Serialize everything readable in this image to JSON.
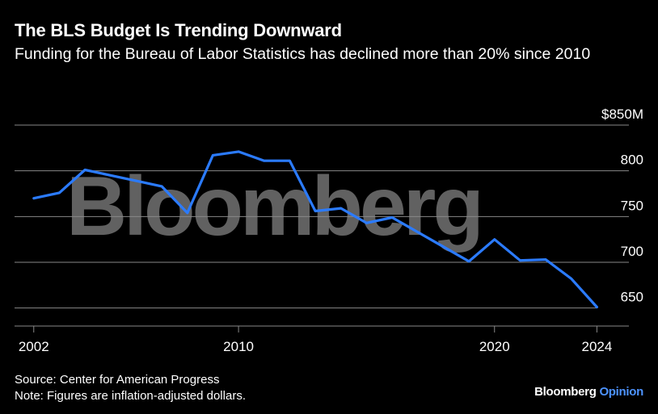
{
  "header": {
    "title": "The BLS Budget Is Trending Downward",
    "subtitle": "Funding for the Bureau of Labor Statistics has declined more than 20% since 2010"
  },
  "footer": {
    "source": "Source: Center for American Progress",
    "note": "Note: Figures are inflation-adjusted dollars.",
    "brand": "Bloomberg",
    "brand_suffix": "Opinion"
  },
  "watermark": "Bloomberg",
  "colors": {
    "background": "#000000",
    "line": "#2b7bff",
    "grid": "#888888",
    "brand_accent": "#4d93ff"
  },
  "chart_data": {
    "type": "line",
    "title": "The BLS Budget Is Trending Downward",
    "subtitle": "Funding for the Bureau of Labor Statistics has declined more than 20% since 2010",
    "x": [
      2002,
      2003,
      2004,
      2005,
      2006,
      2007,
      2008,
      2009,
      2010,
      2011,
      2012,
      2013,
      2014,
      2015,
      2016,
      2017,
      2018,
      2019,
      2020,
      2021,
      2022,
      2023,
      2024
    ],
    "series": [
      {
        "values": [
          770,
          776,
          801,
          795,
          789,
          783,
          754,
          817,
          821,
          811,
          811,
          756,
          759,
          743,
          749,
          733,
          717,
          701,
          725,
          702,
          703,
          682,
          651
        ]
      }
    ],
    "xticks": [
      {
        "value": 2002,
        "label": "2002"
      },
      {
        "value": 2010,
        "label": "2010"
      },
      {
        "value": 2020,
        "label": "2020"
      },
      {
        "value": 2024,
        "label": "2024"
      }
    ],
    "yticks": [
      {
        "value": 650,
        "label": "650"
      },
      {
        "value": 700,
        "label": "700"
      },
      {
        "value": 750,
        "label": "750"
      },
      {
        "value": 800,
        "label": "800"
      },
      {
        "value": 850,
        "label": "$850M"
      }
    ],
    "xlim": [
      2001.25,
      2025.25
    ],
    "ylim": [
      640,
      850
    ],
    "grid": true,
    "legend": false
  }
}
